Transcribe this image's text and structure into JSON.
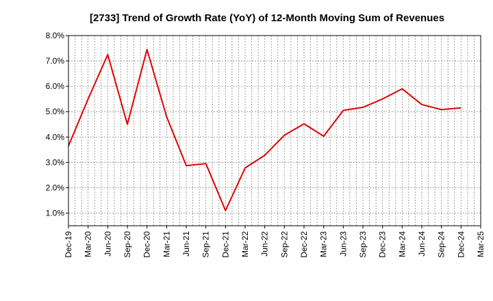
{
  "chart_data": {
    "type": "line",
    "title": "[2733]  Trend of Growth Rate (YoY) of 12-Month Moving Sum of Revenues",
    "xlabel": "",
    "ylabel": "",
    "x_ticks": [
      "Dec-19",
      "Mar-20",
      "Jun-20",
      "Sep-20",
      "Dec-20",
      "Mar-21",
      "Jun-21",
      "Sep-21",
      "Dec-21",
      "Mar-22",
      "Jun-22",
      "Sep-22",
      "Dec-22",
      "Mar-23",
      "Jun-23",
      "Sep-23",
      "Dec-23",
      "Mar-24",
      "Jun-24",
      "Sep-24",
      "Dec-24",
      "Mar-25"
    ],
    "y_ticks": [
      "1.0%",
      "2.0%",
      "3.0%",
      "4.0%",
      "5.0%",
      "6.0%",
      "7.0%",
      "8.0%"
    ],
    "ylim": [
      0.5,
      8.0
    ],
    "y_unit": "%",
    "grid": true,
    "legend": "none",
    "series": [
      {
        "color": "#e00000",
        "x": [
          "Dec-19",
          "Mar-20",
          "Jun-20",
          "Sep-20",
          "Dec-20",
          "Mar-21",
          "Jun-21",
          "Sep-21",
          "Dec-21",
          "Mar-22",
          "Jun-22",
          "Sep-22",
          "Dec-22",
          "Mar-23",
          "Jun-23",
          "Sep-23",
          "Dec-23",
          "Mar-24",
          "Jun-24",
          "Sep-24",
          "Dec-24"
        ],
        "values": [
          3.65,
          5.5,
          7.25,
          4.5,
          7.45,
          4.8,
          2.87,
          2.95,
          1.1,
          2.78,
          3.28,
          4.07,
          4.52,
          4.03,
          5.05,
          5.17,
          5.5,
          5.9,
          5.28,
          5.08,
          5.15
        ]
      }
    ]
  }
}
